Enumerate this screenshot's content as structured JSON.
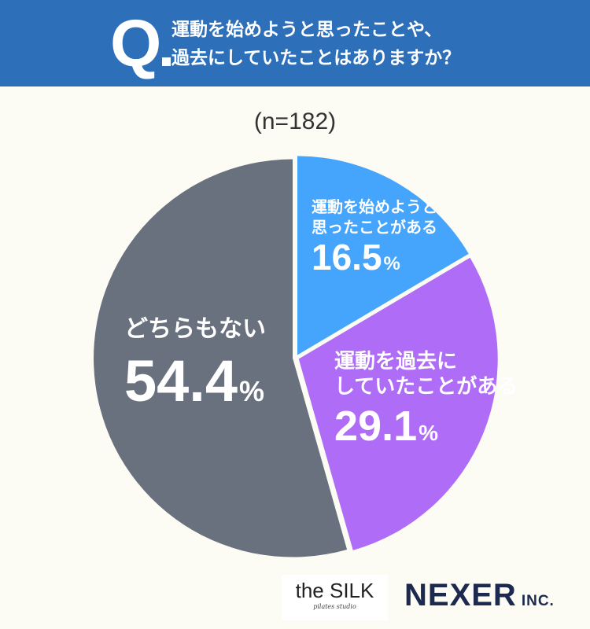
{
  "header": {
    "q_label": "Q",
    "question_line1": "運動を始めようと思ったことや、",
    "question_line2": "過去にしていたことはありますか？"
  },
  "sample_size": "(n=182)",
  "chart_data": {
    "type": "pie",
    "title": "運動を始めようと思ったことや、過去にしていたことはありますか？",
    "n": 182,
    "unit": "%",
    "slices": [
      {
        "label_lines": [
          "運動を始めようと",
          "思ったことがある"
        ],
        "value": 16.5,
        "value_text": "16.5",
        "color": "#45a4fb"
      },
      {
        "label_lines": [
          "運動を過去に",
          "していたことがある"
        ],
        "value": 29.1,
        "value_text": "29.1",
        "color": "#af6cf6"
      },
      {
        "label_lines": [
          "どちらもない"
        ],
        "value": 54.4,
        "value_text": "54.4",
        "color": "#69717f"
      }
    ]
  },
  "logos": {
    "silk_main": "the SILK",
    "silk_sub": "pilates studio",
    "nexer_main": "NEXER",
    "nexer_inc": "INC."
  },
  "colors": {
    "header_bg": "#2d6fb8",
    "background": "#fcfbf4",
    "label_text": "#ffffff"
  }
}
